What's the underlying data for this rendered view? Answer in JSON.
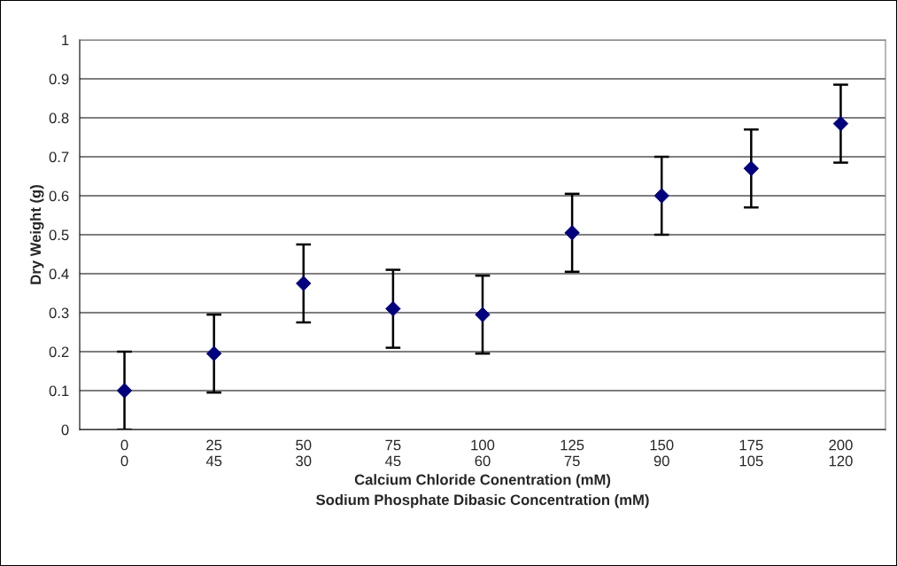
{
  "chart_data": {
    "type": "scatter",
    "xlabel": "Calcium Chloride Conentration (mM)\nSodium Phosphate Dibasic Concentration (mM)",
    "ylabel": "Dry Weight (g)",
    "categories": [
      "0\n0",
      "25\n45",
      "50\n30",
      "75\n45",
      "100\n60",
      "125\n75",
      "150\n90",
      "175\n105",
      "200\n120"
    ],
    "values": [
      0.1,
      0.195,
      0.375,
      0.31,
      0.295,
      0.505,
      0.6,
      0.67,
      0.785
    ],
    "errors": [
      0.1,
      0.1,
      0.1,
      0.1,
      0.1,
      0.1,
      0.1,
      0.1,
      0.1
    ],
    "color": "#000080",
    "marker": "diamond",
    "ylim": [
      0,
      1
    ],
    "yticks": [
      0,
      0.1,
      0.2,
      0.3,
      0.4,
      0.5,
      0.6,
      0.7,
      0.8,
      0.9,
      1
    ],
    "grid": "y",
    "legend": false
  }
}
